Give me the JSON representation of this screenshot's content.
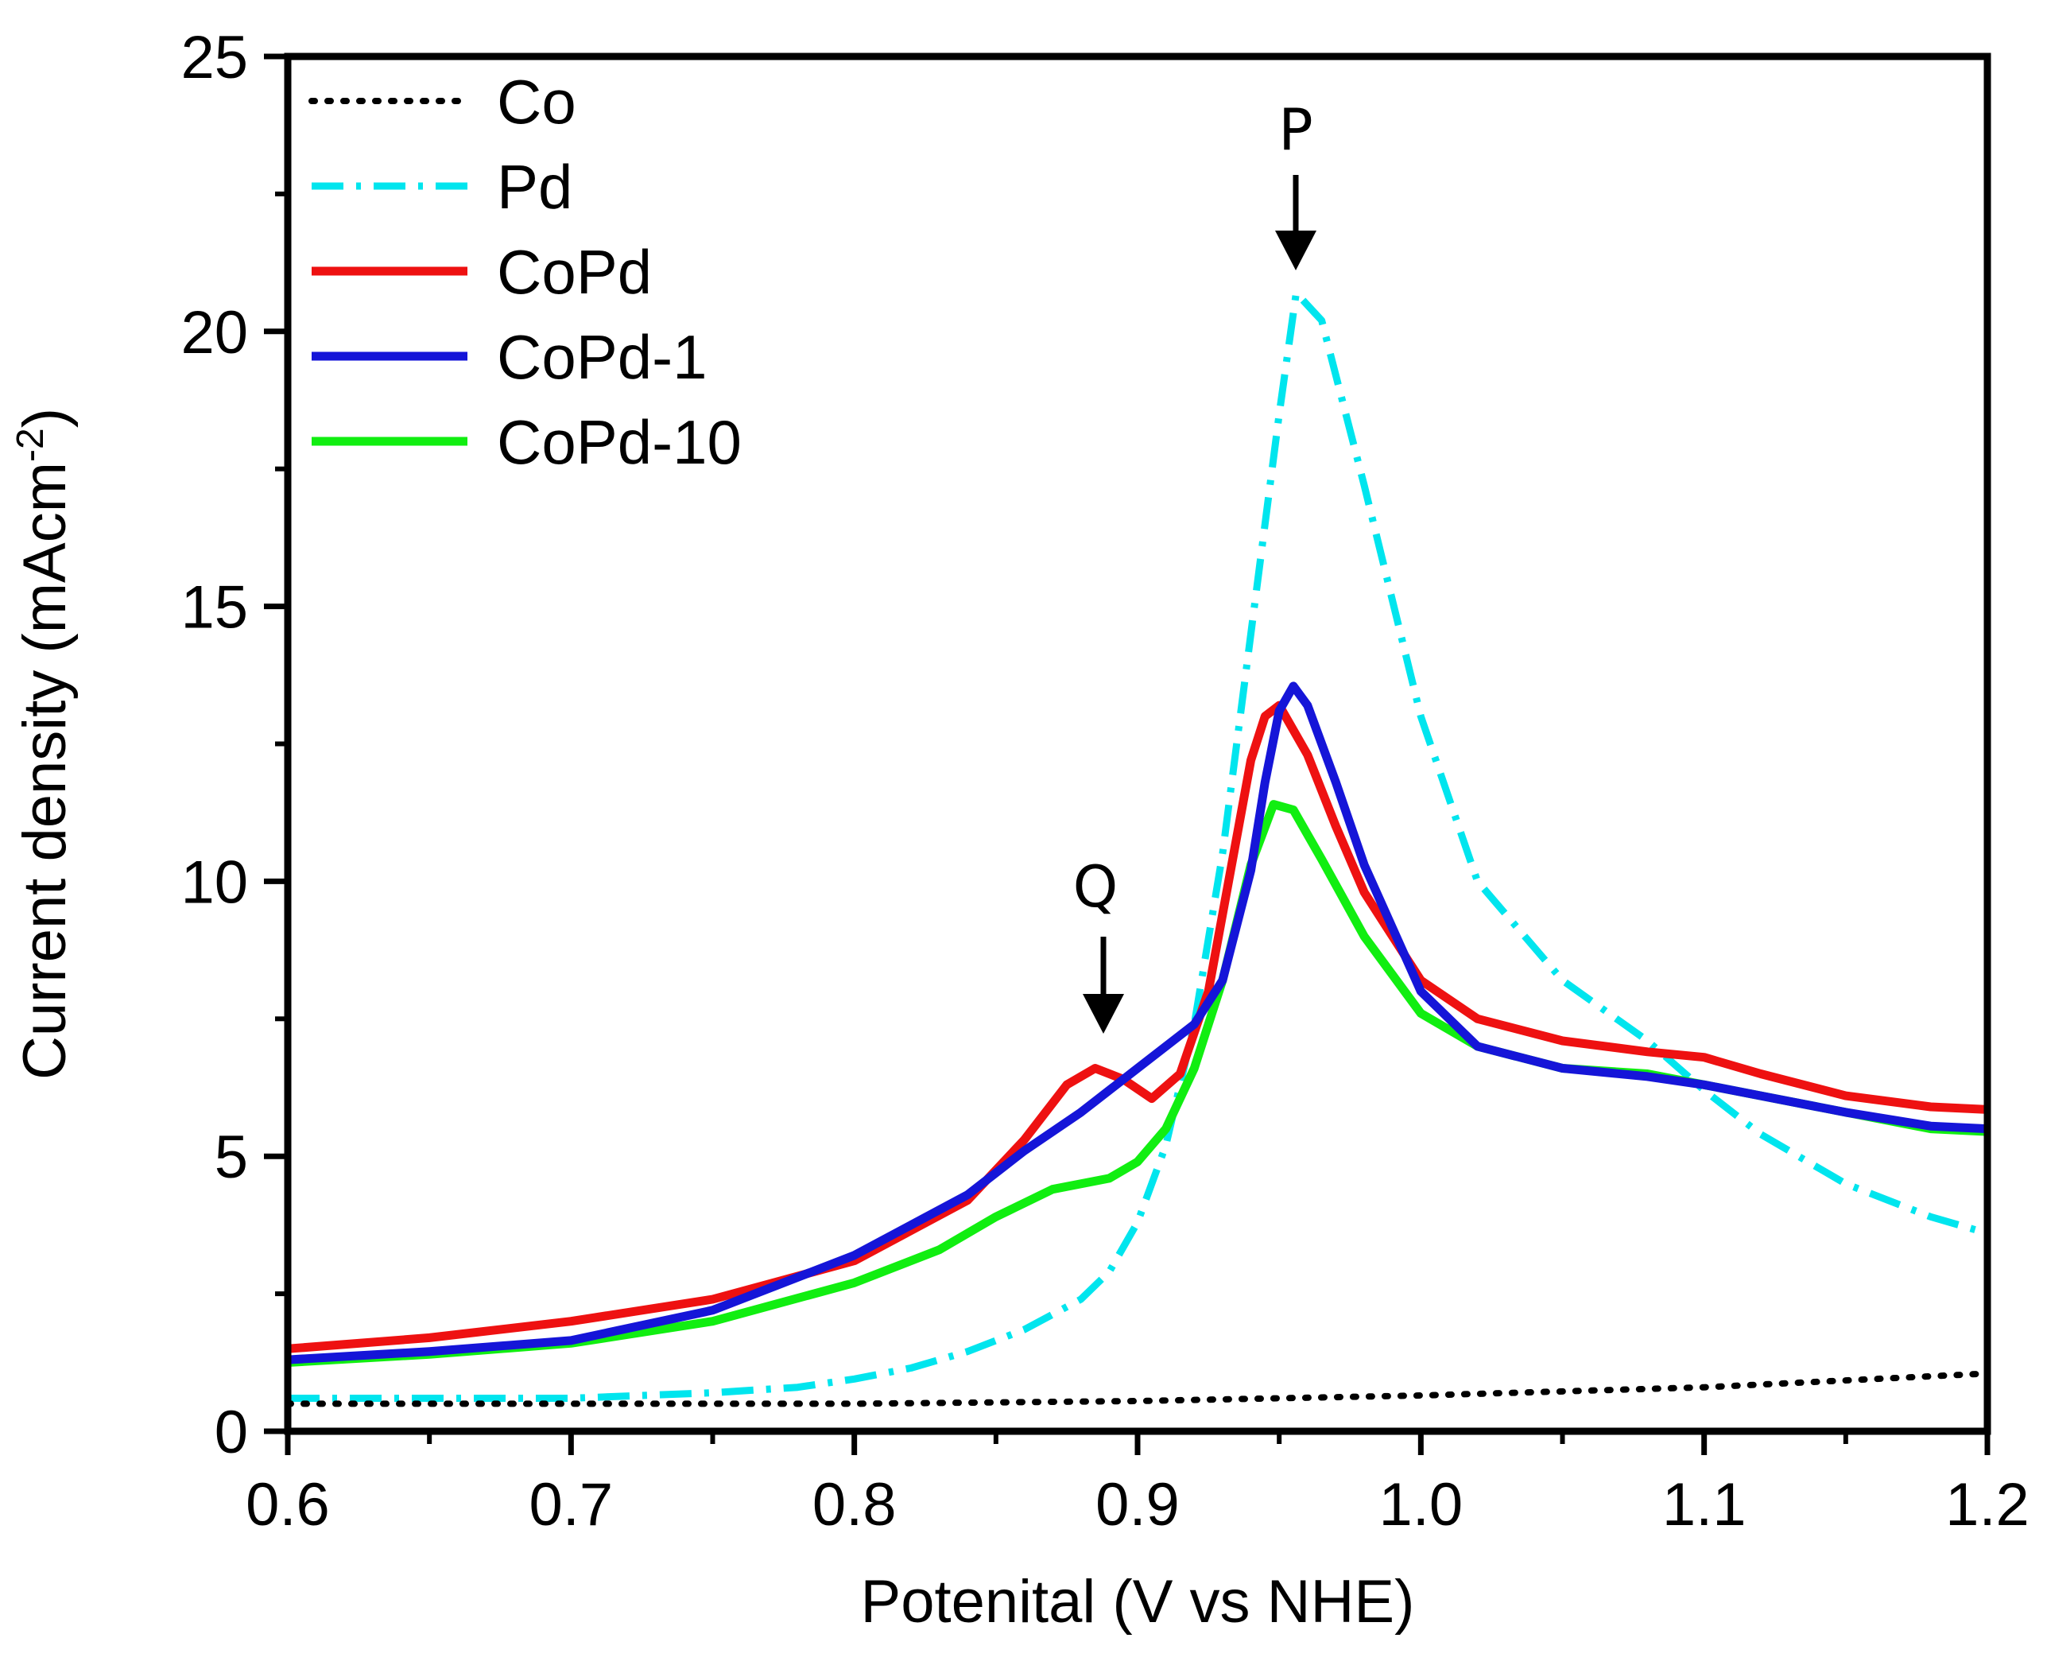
{
  "chart_data": {
    "type": "line",
    "title": "",
    "xlabel": "Potenital (V vs NHE)",
    "ylabel_main": "Current density (mAcm",
    "ylabel_sup": "-2",
    "ylabel_close": ")",
    "xlim": [
      0.6,
      1.2
    ],
    "ylim": [
      0,
      25
    ],
    "x_ticks": [
      0.6,
      0.7,
      0.8,
      0.9,
      1.0,
      1.1,
      1.2
    ],
    "x_tick_labels": [
      "0.6",
      "0.7",
      "0.8",
      "0.9",
      "1.0",
      "1.1",
      "1.2"
    ],
    "y_ticks": [
      0,
      5,
      10,
      15,
      20,
      25
    ],
    "y_tick_labels": [
      "0",
      "5",
      "10",
      "15",
      "20",
      "25"
    ],
    "grid": false,
    "legend_position": "top-left",
    "series": [
      {
        "name": "Co",
        "color": "#000000",
        "style": "dotted",
        "x": [
          0.6,
          0.7,
          0.8,
          0.9,
          1.0,
          1.1,
          1.2
        ],
        "y": [
          0.5,
          0.5,
          0.5,
          0.55,
          0.65,
          0.8,
          1.05
        ]
      },
      {
        "name": "Pd",
        "color": "#00E5EE",
        "style": "dashdot",
        "x": [
          0.6,
          0.65,
          0.7,
          0.75,
          0.78,
          0.8,
          0.82,
          0.84,
          0.86,
          0.88,
          0.89,
          0.9,
          0.91,
          0.92,
          0.93,
          0.94,
          0.95,
          0.956,
          0.965,
          0.98,
          1.0,
          1.02,
          1.05,
          1.08,
          1.1,
          1.12,
          1.15,
          1.18,
          1.2
        ],
        "y": [
          0.6,
          0.6,
          0.6,
          0.7,
          0.8,
          0.95,
          1.15,
          1.45,
          1.85,
          2.4,
          2.9,
          3.8,
          5.2,
          7.4,
          10.5,
          14.5,
          18.5,
          20.7,
          20.2,
          17.2,
          13.0,
          10.0,
          8.2,
          7.1,
          6.2,
          5.4,
          4.5,
          3.9,
          3.6
        ]
      },
      {
        "name": "CoPd",
        "color": "#EE1111",
        "style": "solid",
        "x": [
          0.6,
          0.65,
          0.7,
          0.75,
          0.8,
          0.84,
          0.86,
          0.875,
          0.885,
          0.895,
          0.905,
          0.915,
          0.925,
          0.935,
          0.94,
          0.945,
          0.95,
          0.96,
          0.97,
          0.98,
          1.0,
          1.02,
          1.05,
          1.08,
          1.1,
          1.12,
          1.15,
          1.18,
          1.2
        ],
        "y": [
          1.5,
          1.7,
          2.0,
          2.4,
          3.1,
          4.2,
          5.3,
          6.3,
          6.6,
          6.4,
          6.05,
          6.5,
          8.0,
          10.8,
          12.2,
          13.0,
          13.2,
          12.3,
          11.0,
          9.8,
          8.2,
          7.5,
          7.1,
          6.9,
          6.8,
          6.5,
          6.1,
          5.9,
          5.85
        ]
      },
      {
        "name": "CoPd-1",
        "color": "#1515D8",
        "style": "solid",
        "x": [
          0.6,
          0.65,
          0.7,
          0.75,
          0.8,
          0.84,
          0.86,
          0.88,
          0.9,
          0.92,
          0.93,
          0.94,
          0.945,
          0.95,
          0.955,
          0.96,
          0.97,
          0.98,
          1.0,
          1.02,
          1.05,
          1.08,
          1.1,
          1.12,
          1.15,
          1.18,
          1.2
        ],
        "y": [
          1.3,
          1.45,
          1.65,
          2.2,
          3.2,
          4.3,
          5.1,
          5.8,
          6.6,
          7.4,
          8.2,
          10.2,
          11.8,
          13.1,
          13.55,
          13.2,
          11.8,
          10.3,
          8.0,
          7.0,
          6.6,
          6.45,
          6.3,
          6.1,
          5.8,
          5.55,
          5.5
        ]
      },
      {
        "name": "CoPd-10",
        "color": "#11EE11",
        "style": "solid",
        "x": [
          0.6,
          0.65,
          0.7,
          0.75,
          0.8,
          0.83,
          0.85,
          0.87,
          0.89,
          0.9,
          0.91,
          0.92,
          0.93,
          0.94,
          0.948,
          0.955,
          0.965,
          0.98,
          1.0,
          1.02,
          1.05,
          1.08,
          1.1,
          1.12,
          1.15,
          1.18,
          1.2
        ],
        "y": [
          1.25,
          1.4,
          1.6,
          2.0,
          2.7,
          3.3,
          3.9,
          4.4,
          4.6,
          4.9,
          5.5,
          6.6,
          8.2,
          10.3,
          11.4,
          11.3,
          10.4,
          9.0,
          7.6,
          7.0,
          6.6,
          6.5,
          6.3,
          6.1,
          5.8,
          5.5,
          5.45
        ]
      }
    ],
    "annotations": [
      {
        "text": "P",
        "x": 0.955,
        "y": 20.7
      },
      {
        "text": "Q",
        "x": 0.888,
        "y": 7.0
      }
    ]
  }
}
